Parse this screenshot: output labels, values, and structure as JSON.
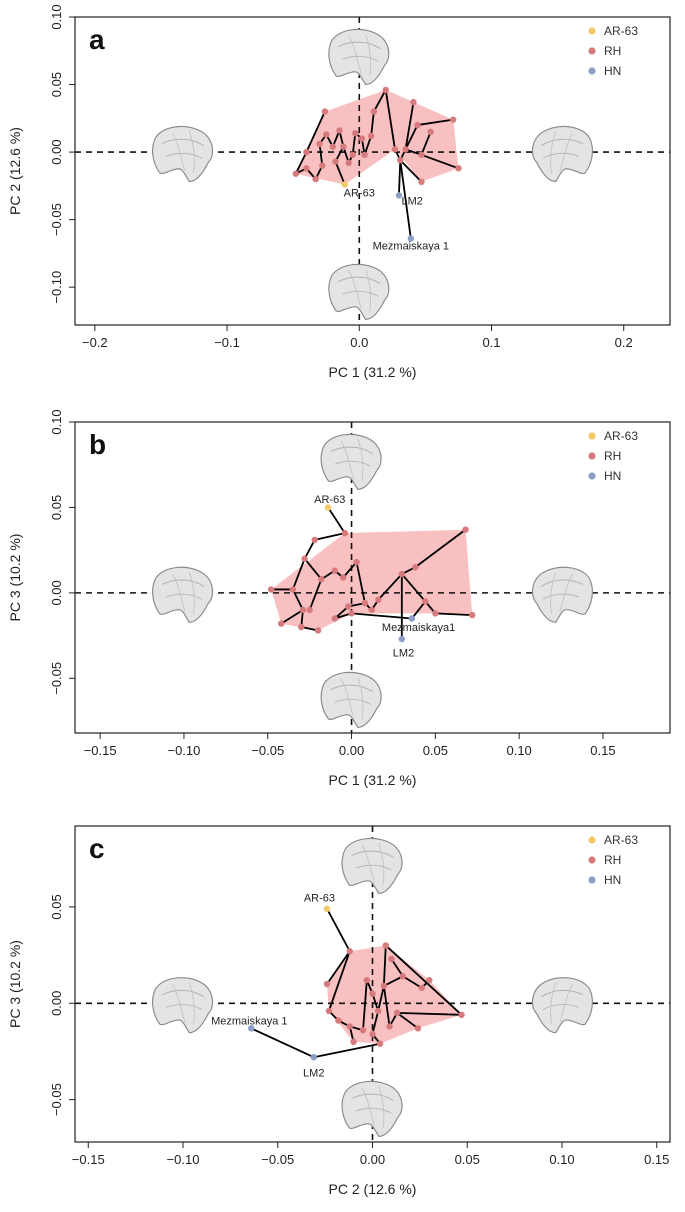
{
  "colors": {
    "ar63": "#f3c96a",
    "rh": "#d77a7e",
    "hn": "#8d9ec4",
    "hull": "#f7b5b5"
  },
  "legend": [
    {
      "key": "ar63",
      "label": "AR-63"
    },
    {
      "key": "rh",
      "label": "RH"
    },
    {
      "key": "hn",
      "label": "HN"
    }
  ],
  "chart_data": [
    {
      "type": "scatter",
      "panel_letter": "a",
      "xlabel": "PC 1 (31.2 %)",
      "ylabel": "PC 2 (12.6 %)",
      "xlim": [
        -0.215,
        0.235
      ],
      "ylim": [
        -0.128,
        0.1
      ],
      "xticks": [
        -0.2,
        -0.1,
        0.0,
        0.1,
        0.2
      ],
      "xtick_labels": [
        "−0.2",
        "−0.1",
        "0.0",
        "0.1",
        "0.2"
      ],
      "yticks": [
        -0.1,
        -0.05,
        0.0,
        0.05,
        0.1
      ],
      "ytick_labels": [
        "−0.10",
        "−0.05",
        "0.00",
        "0.05",
        "0.10"
      ],
      "refline_x": 0,
      "refline_y": 0,
      "shapes": [
        "top",
        "bottom",
        "left",
        "right"
      ],
      "points": [
        {
          "id": "p1",
          "x": -0.026,
          "y": 0.03,
          "g": "rh"
        },
        {
          "id": "p2",
          "x": -0.04,
          "y": 0.0,
          "g": "rh"
        },
        {
          "id": "p3",
          "x": -0.048,
          "y": -0.016,
          "g": "rh"
        },
        {
          "id": "p4",
          "x": -0.04,
          "y": -0.012,
          "g": "rh"
        },
        {
          "id": "p5",
          "x": -0.033,
          "y": -0.02,
          "g": "rh"
        },
        {
          "id": "p6",
          "x": -0.028,
          "y": -0.01,
          "g": "rh"
        },
        {
          "id": "p7",
          "x": -0.03,
          "y": 0.006,
          "g": "rh"
        },
        {
          "id": "p8",
          "x": -0.025,
          "y": 0.013,
          "g": "rh"
        },
        {
          "id": "p9",
          "x": -0.02,
          "y": 0.004,
          "g": "rh"
        },
        {
          "id": "p10",
          "x": -0.015,
          "y": 0.016,
          "g": "rh"
        },
        {
          "id": "p11",
          "x": -0.012,
          "y": 0.004,
          "g": "rh"
        },
        {
          "id": "p12",
          "x": -0.018,
          "y": -0.007,
          "g": "rh"
        },
        {
          "id": "p13",
          "x": -0.008,
          "y": -0.008,
          "g": "rh"
        },
        {
          "id": "p14",
          "x": -0.005,
          "y": -0.002,
          "g": "rh"
        },
        {
          "id": "p15",
          "x": -0.003,
          "y": 0.014,
          "g": "rh"
        },
        {
          "id": "p16",
          "x": 0.002,
          "y": 0.01,
          "g": "rh"
        },
        {
          "id": "p17",
          "x": 0.004,
          "y": -0.002,
          "g": "rh"
        },
        {
          "id": "p18",
          "x": 0.009,
          "y": 0.012,
          "g": "rh"
        },
        {
          "id": "p19",
          "x": 0.011,
          "y": 0.03,
          "g": "rh"
        },
        {
          "id": "p20",
          "x": 0.02,
          "y": 0.046,
          "g": "rh"
        },
        {
          "id": "p21",
          "x": 0.027,
          "y": 0.002,
          "g": "rh"
        },
        {
          "id": "p22",
          "x": 0.031,
          "y": -0.006,
          "g": "rh"
        },
        {
          "id": "p23",
          "x": 0.035,
          "y": 0.002,
          "g": "rh"
        },
        {
          "id": "p24",
          "x": 0.041,
          "y": 0.037,
          "g": "rh"
        },
        {
          "id": "p25",
          "x": 0.044,
          "y": 0.02,
          "g": "rh"
        },
        {
          "id": "p26",
          "x": 0.047,
          "y": -0.002,
          "g": "rh"
        },
        {
          "id": "p27",
          "x": 0.054,
          "y": 0.015,
          "g": "rh"
        },
        {
          "id": "p28",
          "x": 0.047,
          "y": -0.022,
          "g": "rh"
        },
        {
          "id": "p29",
          "x": 0.071,
          "y": 0.024,
          "g": "rh"
        },
        {
          "id": "p30",
          "x": 0.075,
          "y": -0.012,
          "g": "rh"
        },
        {
          "id": "ar",
          "x": -0.011,
          "y": -0.024,
          "g": "ar63",
          "label": "AR-63",
          "lx": 0.0,
          "ly": -0.03
        },
        {
          "id": "lm2",
          "x": 0.03,
          "y": -0.032,
          "g": "hn",
          "label": "LM2",
          "lx": 0.04,
          "ly": -0.036
        },
        {
          "id": "mez",
          "x": 0.039,
          "y": -0.064,
          "g": "hn",
          "label": "Mezmaiskaya 1",
          "lx": 0.039,
          "ly": -0.069
        }
      ],
      "edges": [
        [
          "p1",
          "p2"
        ],
        [
          "p2",
          "p3"
        ],
        [
          "p3",
          "p4"
        ],
        [
          "p4",
          "p5"
        ],
        [
          "p5",
          "p6"
        ],
        [
          "p6",
          "p7"
        ],
        [
          "p7",
          "p8"
        ],
        [
          "p8",
          "p9"
        ],
        [
          "p9",
          "p10"
        ],
        [
          "p10",
          "p11"
        ],
        [
          "p11",
          "p12"
        ],
        [
          "p12",
          "ar"
        ],
        [
          "p11",
          "p13"
        ],
        [
          "p13",
          "p14"
        ],
        [
          "p14",
          "p15"
        ],
        [
          "p15",
          "p16"
        ],
        [
          "p16",
          "p17"
        ],
        [
          "p17",
          "p18"
        ],
        [
          "p18",
          "p19"
        ],
        [
          "p19",
          "p20"
        ],
        [
          "p20",
          "p21"
        ],
        [
          "p21",
          "p22"
        ],
        [
          "p22",
          "p23"
        ],
        [
          "p23",
          "p24"
        ],
        [
          "p22",
          "lm2"
        ],
        [
          "p23",
          "p25"
        ],
        [
          "p25",
          "p29"
        ],
        [
          "p23",
          "p26"
        ],
        [
          "p26",
          "p27"
        ],
        [
          "p26",
          "p30"
        ],
        [
          "p22",
          "p28"
        ],
        [
          "p22",
          "mez"
        ]
      ],
      "hull": [
        "p1",
        "p20",
        "p24",
        "p29",
        "p30",
        "p28",
        "p21",
        "ar",
        "p3",
        "p2"
      ]
    },
    {
      "type": "scatter",
      "panel_letter": "b",
      "xlabel": "PC 1 (31.2 %)",
      "ylabel": "PC 3 (10.2 %)",
      "xlim": [
        -0.165,
        0.19
      ],
      "ylim": [
        -0.082,
        0.1
      ],
      "xticks": [
        -0.15,
        -0.1,
        -0.05,
        0.0,
        0.05,
        0.1,
        0.15
      ],
      "xtick_labels": [
        "−0.15",
        "−0.10",
        "−0.05",
        "0.00",
        "0.05",
        "0.10",
        "0.15"
      ],
      "yticks": [
        -0.05,
        0.0,
        0.05,
        0.1
      ],
      "ytick_labels": [
        "−0.05",
        "0.00",
        "0.05",
        "0.10"
      ],
      "refline_x": 0,
      "refline_y": 0,
      "shapes": [
        "top",
        "bottom",
        "left",
        "right"
      ],
      "points": [
        {
          "id": "p1",
          "x": -0.022,
          "y": 0.031,
          "g": "rh"
        },
        {
          "id": "p2",
          "x": -0.028,
          "y": 0.02,
          "g": "rh"
        },
        {
          "id": "p3",
          "x": -0.048,
          "y": 0.002,
          "g": "rh"
        },
        {
          "id": "p4",
          "x": -0.035,
          "y": 0.002,
          "g": "rh"
        },
        {
          "id": "p5",
          "x": -0.029,
          "y": -0.01,
          "g": "rh"
        },
        {
          "id": "p6",
          "x": -0.042,
          "y": -0.018,
          "g": "rh"
        },
        {
          "id": "p7",
          "x": -0.03,
          "y": -0.02,
          "g": "rh"
        },
        {
          "id": "p8",
          "x": -0.02,
          "y": -0.022,
          "g": "rh"
        },
        {
          "id": "p9",
          "x": -0.018,
          "y": 0.008,
          "g": "rh"
        },
        {
          "id": "p10",
          "x": -0.01,
          "y": 0.013,
          "g": "rh"
        },
        {
          "id": "p11",
          "x": -0.005,
          "y": 0.009,
          "g": "rh"
        },
        {
          "id": "p12",
          "x": -0.004,
          "y": 0.035,
          "g": "rh"
        },
        {
          "id": "p13",
          "x": -0.002,
          "y": -0.008,
          "g": "rh"
        },
        {
          "id": "p14",
          "x": -0.01,
          "y": -0.015,
          "g": "rh"
        },
        {
          "id": "p15",
          "x": 0.0,
          "y": -0.012,
          "g": "rh"
        },
        {
          "id": "p16",
          "x": 0.003,
          "y": 0.018,
          "g": "rh"
        },
        {
          "id": "p17",
          "x": 0.008,
          "y": -0.006,
          "g": "rh"
        },
        {
          "id": "p18",
          "x": 0.012,
          "y": -0.01,
          "g": "rh"
        },
        {
          "id": "p19",
          "x": 0.016,
          "y": -0.004,
          "g": "rh"
        },
        {
          "id": "p20",
          "x": 0.03,
          "y": 0.011,
          "g": "rh"
        },
        {
          "id": "p21",
          "x": 0.038,
          "y": 0.015,
          "g": "rh"
        },
        {
          "id": "p22",
          "x": 0.044,
          "y": -0.005,
          "g": "rh"
        },
        {
          "id": "p23",
          "x": 0.05,
          "y": -0.012,
          "g": "rh"
        },
        {
          "id": "p24",
          "x": 0.068,
          "y": 0.037,
          "g": "rh"
        },
        {
          "id": "p25",
          "x": 0.072,
          "y": -0.013,
          "g": "rh"
        },
        {
          "id": "p26",
          "x": -0.025,
          "y": -0.01,
          "g": "rh"
        },
        {
          "id": "ar",
          "x": -0.014,
          "y": 0.05,
          "g": "ar63",
          "label": "AR-63",
          "lx": -0.013,
          "ly": 0.055
        },
        {
          "id": "lm2",
          "x": 0.03,
          "y": -0.027,
          "g": "hn",
          "label": "LM2",
          "lx": 0.031,
          "ly": -0.035
        },
        {
          "id": "mez",
          "x": 0.036,
          "y": -0.015,
          "g": "hn",
          "label": "Mezmaiskaya1",
          "lx": 0.04,
          "ly": -0.02
        }
      ],
      "edges": [
        [
          "ar",
          "p12"
        ],
        [
          "p12",
          "p1"
        ],
        [
          "p1",
          "p2"
        ],
        [
          "p2",
          "p4"
        ],
        [
          "p4",
          "p3"
        ],
        [
          "p4",
          "p5"
        ],
        [
          "p5",
          "p6"
        ],
        [
          "p5",
          "p7"
        ],
        [
          "p7",
          "p8"
        ],
        [
          "p2",
          "p9"
        ],
        [
          "p9",
          "p10"
        ],
        [
          "p10",
          "p11"
        ],
        [
          "p11",
          "p16"
        ],
        [
          "p16",
          "p17"
        ],
        [
          "p17",
          "p18"
        ],
        [
          "p18",
          "p19"
        ],
        [
          "p19",
          "p20"
        ],
        [
          "p20",
          "p21"
        ],
        [
          "p21",
          "p24"
        ],
        [
          "p20",
          "p22"
        ],
        [
          "p22",
          "p23"
        ],
        [
          "p23",
          "p25"
        ],
        [
          "p22",
          "mez"
        ],
        [
          "p17",
          "p13"
        ],
        [
          "p13",
          "p14"
        ],
        [
          "p14",
          "p15"
        ],
        [
          "p15",
          "mez"
        ],
        [
          "p20",
          "lm2"
        ],
        [
          "p9",
          "p26"
        ]
      ],
      "hull": [
        "p3",
        "p12",
        "p24",
        "p25",
        "p23",
        "p15",
        "p8",
        "p6"
      ]
    },
    {
      "type": "scatter",
      "panel_letter": "c",
      "xlabel": "PC 2 (12.6 %)",
      "ylabel": "PC 3 (10.2 %)",
      "xlim": [
        -0.157,
        0.157
      ],
      "ylim": [
        -0.072,
        0.092
      ],
      "xticks": [
        -0.15,
        -0.1,
        -0.05,
        0.0,
        0.05,
        0.1,
        0.15
      ],
      "xtick_labels": [
        "−0.15",
        "−0.10",
        "−0.05",
        "0.00",
        "0.05",
        "0.10",
        "0.15"
      ],
      "yticks": [
        -0.05,
        0.0,
        0.05
      ],
      "ytick_labels": [
        "−0.05",
        "0.00",
        "0.05"
      ],
      "refline_x": 0,
      "refline_y": 0,
      "shapes": [
        "top",
        "bottom",
        "left",
        "right"
      ],
      "points": [
        {
          "id": "p1",
          "x": -0.012,
          "y": 0.027,
          "g": "rh"
        },
        {
          "id": "p2",
          "x": -0.024,
          "y": 0.01,
          "g": "rh"
        },
        {
          "id": "p3",
          "x": -0.023,
          "y": -0.004,
          "g": "rh"
        },
        {
          "id": "p4",
          "x": -0.018,
          "y": -0.009,
          "g": "rh"
        },
        {
          "id": "p5",
          "x": -0.012,
          "y": -0.012,
          "g": "rh"
        },
        {
          "id": "p6",
          "x": -0.01,
          "y": -0.02,
          "g": "rh"
        },
        {
          "id": "p7",
          "x": -0.005,
          "y": -0.014,
          "g": "rh"
        },
        {
          "id": "p8",
          "x": -0.003,
          "y": 0.012,
          "g": "rh"
        },
        {
          "id": "p9",
          "x": 0.0,
          "y": 0.005,
          "g": "rh"
        },
        {
          "id": "p10",
          "x": 0.003,
          "y": -0.004,
          "g": "rh"
        },
        {
          "id": "p11",
          "x": 0.0,
          "y": -0.016,
          "g": "rh"
        },
        {
          "id": "p12",
          "x": 0.004,
          "y": -0.021,
          "g": "rh"
        },
        {
          "id": "p13",
          "x": 0.006,
          "y": 0.009,
          "g": "rh"
        },
        {
          "id": "p14",
          "x": 0.007,
          "y": 0.03,
          "g": "rh"
        },
        {
          "id": "p15",
          "x": 0.009,
          "y": -0.012,
          "g": "rh"
        },
        {
          "id": "p16",
          "x": 0.013,
          "y": -0.005,
          "g": "rh"
        },
        {
          "id": "p17",
          "x": 0.016,
          "y": 0.014,
          "g": "rh"
        },
        {
          "id": "p18",
          "x": 0.024,
          "y": -0.013,
          "g": "rh"
        },
        {
          "id": "p19",
          "x": 0.026,
          "y": 0.008,
          "g": "rh"
        },
        {
          "id": "p20",
          "x": 0.03,
          "y": 0.012,
          "g": "rh"
        },
        {
          "id": "p21",
          "x": 0.047,
          "y": -0.006,
          "g": "rh"
        },
        {
          "id": "p22",
          "x": 0.01,
          "y": 0.023,
          "g": "rh"
        },
        {
          "id": "ar",
          "x": -0.024,
          "y": 0.049,
          "g": "ar63",
          "label": "AR-63",
          "lx": -0.028,
          "ly": 0.055
        },
        {
          "id": "lm2",
          "x": -0.031,
          "y": -0.028,
          "g": "hn",
          "label": "LM2",
          "lx": -0.031,
          "ly": -0.036
        },
        {
          "id": "mez",
          "x": -0.064,
          "y": -0.013,
          "g": "hn",
          "label": "Mezmaiskaya 1",
          "lx": -0.065,
          "ly": -0.009
        }
      ],
      "edges": [
        [
          "ar",
          "p1"
        ],
        [
          "p1",
          "p2"
        ],
        [
          "p1",
          "p3"
        ],
        [
          "p3",
          "p4"
        ],
        [
          "p4",
          "p5"
        ],
        [
          "p5",
          "p6"
        ],
        [
          "p5",
          "p7"
        ],
        [
          "p7",
          "p8"
        ],
        [
          "p8",
          "p9"
        ],
        [
          "p9",
          "p10"
        ],
        [
          "p10",
          "p11"
        ],
        [
          "p11",
          "p12"
        ],
        [
          "p12",
          "lm2"
        ],
        [
          "lm2",
          "mez"
        ],
        [
          "p10",
          "p13"
        ],
        [
          "p13",
          "p14"
        ],
        [
          "p14",
          "p21"
        ],
        [
          "p13",
          "p15"
        ],
        [
          "p15",
          "p16"
        ],
        [
          "p16",
          "p18"
        ],
        [
          "p13",
          "p17"
        ],
        [
          "p17",
          "p22"
        ],
        [
          "p17",
          "p19"
        ],
        [
          "p19",
          "p20"
        ],
        [
          "p16",
          "p21"
        ]
      ],
      "hull": [
        "p1",
        "p14",
        "p20",
        "p21",
        "p18",
        "p12",
        "p6",
        "p3",
        "p2"
      ]
    }
  ]
}
